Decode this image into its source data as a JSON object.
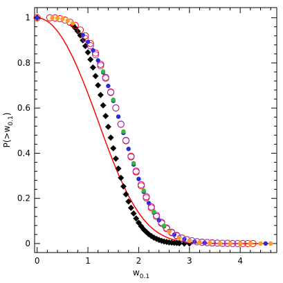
{
  "chart_data": {
    "type": "scatter",
    "xlabel_main": "w",
    "xlabel_sub": "0.1",
    "ylabel_prefix": "P(>w",
    "ylabel_sub": "0.1",
    "ylabel_suffix": ")",
    "xlim": [
      -0.05,
      4.72
    ],
    "ylim": [
      -0.04,
      1.045
    ],
    "xticks": [
      0,
      1,
      2,
      3,
      4
    ],
    "yticks": [
      0,
      0.2,
      0.4,
      0.6,
      0.8,
      1
    ],
    "xtick_labels": [
      "0",
      "1",
      "2",
      "3",
      "4"
    ],
    "ytick_labels": [
      "0",
      "0.2",
      "0.4",
      "0.6",
      "0.8",
      "1"
    ],
    "grid": false,
    "legend": "none",
    "colors": {
      "black_diamonds": "#000000",
      "red_circles": "#ff0000",
      "blue_dots": "#2a2ad0",
      "purple_open": "#9b30c8",
      "green_dots": "#33bb33",
      "orange_dots": "#ff9a2a",
      "red_curve": "#ff0000"
    },
    "red_curve": {
      "x": [
        0.0,
        0.1,
        0.2,
        0.3,
        0.4,
        0.5,
        0.6,
        0.7,
        0.8,
        0.9,
        1.0,
        1.1,
        1.2,
        1.3,
        1.4,
        1.5,
        1.6,
        1.7,
        1.8,
        1.9,
        2.0,
        2.1,
        2.2,
        2.3,
        2.4,
        2.5,
        2.6,
        2.7,
        2.8,
        2.9,
        3.0,
        3.2,
        3.4,
        3.6,
        3.8,
        4.0,
        4.3,
        4.6
      ],
      "y": [
        1.0,
        0.996,
        0.985,
        0.967,
        0.941,
        0.909,
        0.87,
        0.826,
        0.776,
        0.722,
        0.665,
        0.605,
        0.543,
        0.481,
        0.42,
        0.362,
        0.307,
        0.257,
        0.211,
        0.171,
        0.136,
        0.106,
        0.081,
        0.061,
        0.045,
        0.033,
        0.023,
        0.016,
        0.011,
        0.007,
        0.005,
        0.002,
        0.001,
        0.0,
        0.0,
        0.0,
        0.0,
        0.0
      ]
    },
    "series": [
      {
        "marker": "diamond",
        "color": "#000000",
        "x": [
          0.0,
          0.7,
          0.75,
          0.8,
          0.85,
          0.9,
          0.95,
          1.0,
          1.05,
          1.1,
          1.15,
          1.2,
          1.25,
          1.3,
          1.35,
          1.4,
          1.45,
          1.5,
          1.55,
          1.6,
          1.65,
          1.7,
          1.75,
          1.8,
          1.85,
          1.9,
          1.95,
          2.0,
          2.05,
          2.1,
          2.15,
          2.2,
          2.25,
          2.3,
          2.35,
          2.4,
          2.45,
          2.5,
          2.55,
          2.6,
          2.65,
          2.7,
          2.75,
          2.8,
          2.9,
          3.0
        ],
        "y": [
          1.0,
          0.968,
          0.955,
          0.94,
          0.922,
          0.9,
          0.875,
          0.847,
          0.815,
          0.78,
          0.742,
          0.701,
          0.658,
          0.612,
          0.565,
          0.517,
          0.469,
          0.422,
          0.376,
          0.332,
          0.291,
          0.253,
          0.218,
          0.186,
          0.158,
          0.133,
          0.111,
          0.092,
          0.076,
          0.062,
          0.051,
          0.041,
          0.033,
          0.026,
          0.021,
          0.016,
          0.012,
          0.009,
          0.007,
          0.005,
          0.004,
          0.003,
          0.002,
          0.001,
          0.0,
          0.0
        ]
      },
      {
        "marker": "open-circle",
        "color": "#ff0000",
        "x": [
          0.0,
          0.25,
          0.35,
          0.45,
          0.55,
          0.65,
          0.75,
          0.85,
          0.95,
          1.05,
          1.15,
          1.25,
          1.35,
          1.45,
          1.55,
          1.65,
          1.75,
          1.85,
          1.95,
          2.05,
          2.15,
          2.25,
          2.35,
          2.45,
          2.55,
          2.65,
          2.75,
          2.85,
          2.95,
          3.05,
          3.15,
          3.25,
          3.35,
          3.45,
          3.55,
          3.65,
          3.75,
          3.85,
          3.95,
          4.05,
          4.15,
          4.25
        ],
        "y": [
          1.0,
          1.0,
          0.999,
          0.996,
          0.99,
          0.98,
          0.966,
          0.946,
          0.92,
          0.886,
          0.844,
          0.794,
          0.736,
          0.671,
          0.601,
          0.528,
          0.455,
          0.384,
          0.317,
          0.256,
          0.203,
          0.158,
          0.12,
          0.09,
          0.066,
          0.048,
          0.034,
          0.024,
          0.017,
          0.012,
          0.008,
          0.006,
          0.004,
          0.003,
          0.002,
          0.001,
          0.001,
          0.0,
          0.0,
          0.0,
          0.0,
          0.0
        ]
      },
      {
        "marker": "dot",
        "color": "#2a2ad0",
        "x": [
          0.0,
          0.9,
          1.0,
          1.1,
          1.2,
          1.3,
          1.4,
          1.5,
          1.6,
          1.7,
          1.8,
          1.9,
          2.0,
          2.1,
          2.2,
          2.3,
          2.4,
          2.5,
          2.6,
          2.7,
          2.8,
          2.9,
          3.0,
          3.1,
          3.2,
          3.3,
          4.5
        ],
        "y": [
          1.0,
          0.923,
          0.893,
          0.856,
          0.811,
          0.758,
          0.698,
          0.632,
          0.562,
          0.49,
          0.419,
          0.35,
          0.286,
          0.229,
          0.179,
          0.137,
          0.103,
          0.076,
          0.055,
          0.039,
          0.027,
          0.019,
          0.013,
          0.008,
          0.005,
          0.003,
          0.0
        ]
      },
      {
        "marker": "open-circle",
        "color": "#9b30c8",
        "x": [
          0.95,
          1.05,
          1.15,
          1.25,
          1.35,
          1.45,
          1.55,
          1.65,
          1.75,
          1.85,
          1.95,
          2.05,
          2.15,
          2.25,
          2.35,
          2.45,
          2.55,
          2.65,
          2.75,
          2.85,
          2.95,
          3.05,
          3.15,
          3.25,
          3.35,
          3.45,
          3.55,
          3.65,
          3.75,
          3.85,
          3.95
        ],
        "y": [
          0.908,
          0.876,
          0.836,
          0.788,
          0.732,
          0.669,
          0.6,
          0.529,
          0.457,
          0.387,
          0.321,
          0.261,
          0.208,
          0.163,
          0.125,
          0.094,
          0.069,
          0.05,
          0.036,
          0.025,
          0.017,
          0.012,
          0.008,
          0.005,
          0.004,
          0.002,
          0.002,
          0.001,
          0.001,
          0.0,
          0.0
        ]
      },
      {
        "marker": "dot",
        "color": "#33bb33",
        "x": [
          1.3,
          1.5,
          1.7,
          1.9,
          2.1,
          2.3,
          2.5
        ],
        "y": [
          0.762,
          0.637,
          0.496,
          0.356,
          0.234,
          0.141,
          0.079
        ]
      },
      {
        "marker": "dot",
        "color": "#ff9a2a",
        "x": [
          0.3,
          0.4,
          0.5,
          0.6,
          0.7,
          2.6,
          2.8,
          3.0,
          3.2,
          3.4,
          3.6,
          3.8,
          4.0,
          4.2,
          4.4,
          4.6
        ],
        "y": [
          1.0,
          0.998,
          0.995,
          0.987,
          0.975,
          0.052,
          0.025,
          0.012,
          0.005,
          0.003,
          0.001,
          0.0,
          0.0,
          0.0,
          0.0,
          0.0
        ]
      }
    ]
  }
}
